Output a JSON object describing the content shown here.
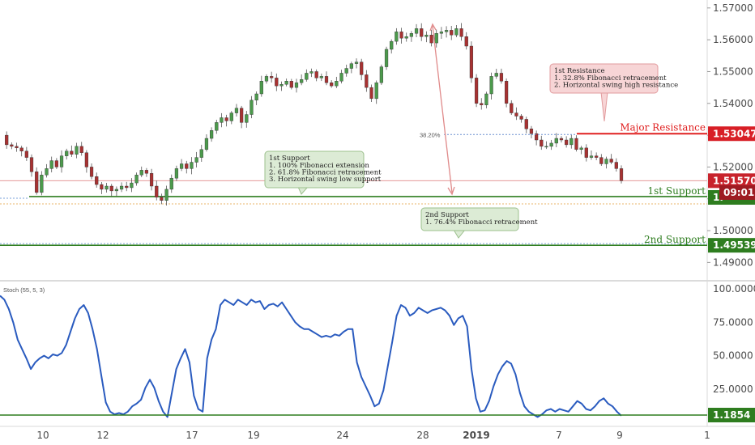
{
  "chart_data": [
    {
      "type": "candlestick",
      "title": "",
      "ylim": [
        1.4845,
        1.5725
      ],
      "y_ticks": [
        "1.57000",
        "1.56000",
        "1.55000",
        "1.54000",
        "1.53000",
        "1.52000",
        "1.51000",
        "1.50000",
        "1.49000"
      ],
      "x_ticks": [
        "10",
        "12",
        "17",
        "19",
        "24",
        "28",
        "2019",
        "7",
        "9",
        "1"
      ],
      "close_path": [
        1.53,
        1.527,
        1.5265,
        1.526,
        1.525,
        1.523,
        1.5185,
        1.512,
        1.5175,
        1.5195,
        1.522,
        1.52,
        1.5235,
        1.525,
        1.524,
        1.5265,
        1.5245,
        1.52,
        1.517,
        1.5145,
        1.513,
        1.514,
        1.5125,
        1.513,
        1.514,
        1.5135,
        1.515,
        1.5175,
        1.519,
        1.518,
        1.514,
        1.5105,
        1.5095,
        1.513,
        1.5165,
        1.5195,
        1.521,
        1.5195,
        1.5215,
        1.523,
        1.5255,
        1.529,
        1.5315,
        1.534,
        1.5355,
        1.5345,
        1.537,
        1.5385,
        1.534,
        1.5365,
        1.541,
        1.543,
        1.547,
        1.5485,
        1.548,
        1.5455,
        1.546,
        1.547,
        1.545,
        1.5465,
        1.5475,
        1.5495,
        1.55,
        1.548,
        1.5485,
        1.5465,
        1.5455,
        1.547,
        1.5495,
        1.551,
        1.5525,
        1.553,
        1.549,
        1.545,
        1.5415,
        1.5465,
        1.5515,
        1.557,
        1.5595,
        1.5625,
        1.5605,
        1.561,
        1.562,
        1.5635,
        1.561,
        1.5615,
        1.559,
        1.562,
        1.5625,
        1.563,
        1.5615,
        1.5635,
        1.561,
        1.558,
        1.548,
        1.54,
        1.5395,
        1.543,
        1.5485,
        1.5495,
        1.547,
        1.54,
        1.537,
        1.536,
        1.535,
        1.532,
        1.5305,
        1.5285,
        1.5265,
        1.5265,
        1.5275,
        1.529,
        1.5285,
        1.527,
        1.529,
        1.5255,
        1.526,
        1.523,
        1.5235,
        1.523,
        1.521,
        1.5225,
        1.5215,
        1.5195,
        1.5157
      ],
      "horizontal_levels": [
        {
          "name": "Major Resistance",
          "value": 1.53047,
          "label": "1.53047",
          "color": "#e02020"
        },
        {
          "name": "Current Price",
          "value": 1.5157,
          "label": "1.51570",
          "color": "#d0222c"
        },
        {
          "name": "1st Support",
          "value": 1.5107,
          "label": "1.",
          "color": "#2e7d1f"
        },
        {
          "name": "2nd Support",
          "value": 1.49539,
          "label": "1.49539",
          "color": "#2e7d1f"
        }
      ],
      "countdown": "09:01",
      "fib_label": "38.20%",
      "notes": [
        {
          "heading": "1st Resistance",
          "lines": [
            "1. 32.8% Fibonacci retracement",
            "2. Horizontal swing high resistance"
          ]
        },
        {
          "heading": "1st Support",
          "lines": [
            "1. 100% Fibonacci extension",
            "2. 61.8% Fibonacci retracement",
            "3. Horizontal swing low support"
          ]
        },
        {
          "heading": "2nd Support",
          "lines": [
            "1. 76.4% Fibonacci retracement"
          ]
        }
      ]
    },
    {
      "type": "line",
      "name": "Stoch (55, 5, 3)",
      "ylim": [
        0,
        105
      ],
      "y_ticks": [
        "100.0000",
        "75.0000",
        "50.0000",
        "25.0000"
      ],
      "level": {
        "value": 1.1854,
        "label": "1.1854"
      },
      "values": [
        95,
        92,
        85,
        75,
        62,
        55,
        48,
        40,
        45,
        48,
        50,
        48,
        51,
        50,
        52,
        58,
        68,
        78,
        85,
        88,
        82,
        70,
        55,
        35,
        15,
        8,
        6,
        7,
        6,
        8,
        12,
        14,
        17,
        26,
        32,
        26,
        16,
        8,
        4,
        22,
        40,
        48,
        55,
        45,
        20,
        10,
        8,
        48,
        62,
        70,
        88,
        92,
        90,
        88,
        92,
        90,
        88,
        92,
        90,
        91,
        85,
        88,
        89,
        87,
        90,
        85,
        80,
        75,
        72,
        70,
        70,
        68,
        66,
        64,
        65,
        64,
        66,
        65,
        68,
        70,
        70,
        45,
        34,
        27,
        20,
        12,
        14,
        24,
        42,
        60,
        80,
        88,
        86,
        80,
        82,
        86,
        84,
        82,
        84,
        85,
        86,
        84,
        80,
        73,
        78,
        80,
        72,
        40,
        18,
        8,
        9,
        16,
        27,
        36,
        42,
        46,
        44,
        36,
        22,
        12,
        8,
        6,
        4,
        6,
        9,
        10,
        8,
        10,
        9,
        8,
        12,
        16,
        14,
        10,
        9,
        12,
        16,
        18,
        14,
        12,
        8,
        5
      ]
    }
  ]
}
